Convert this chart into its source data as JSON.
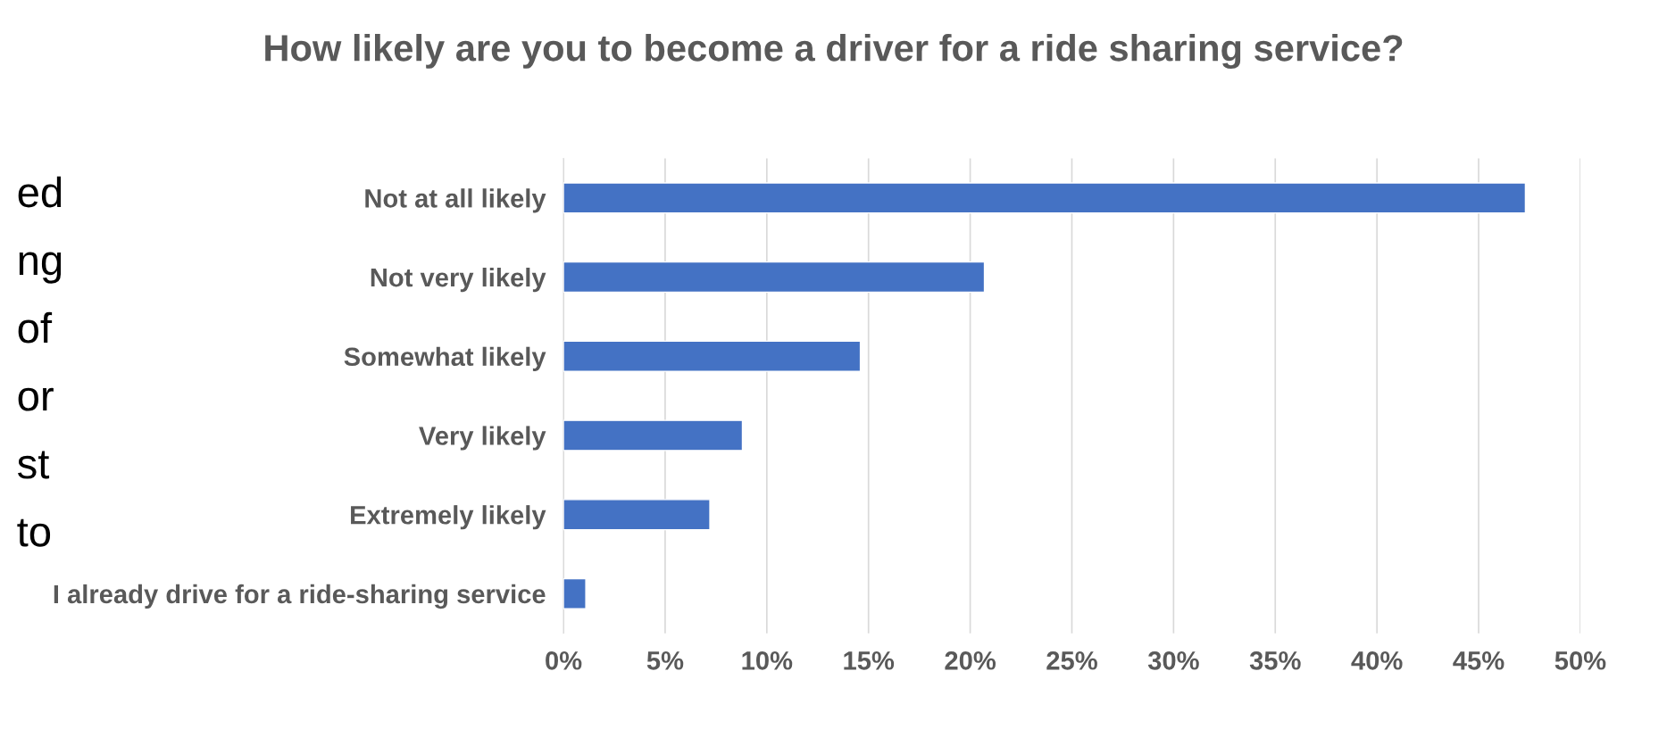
{
  "chart_data": {
    "type": "bar",
    "orientation": "horizontal",
    "title": "How likely are you to become a driver for a ride sharing service?",
    "categories": [
      "Not at all likely",
      "Not very likely",
      "Somewhat likely",
      "Very likely",
      "Extremely likely",
      "I already drive for a ride-sharing service"
    ],
    "values": [
      47.3,
      20.7,
      14.6,
      8.8,
      7.2,
      1.1
    ],
    "color": "#4472c4",
    "xlim": [
      0,
      50
    ],
    "xticks": [
      {
        "value": 0,
        "label": "0%"
      },
      {
        "value": 5,
        "label": "5%"
      },
      {
        "value": 10,
        "label": "10%"
      },
      {
        "value": 15,
        "label": "15%"
      },
      {
        "value": 20,
        "label": "20%"
      },
      {
        "value": 25,
        "label": "25%"
      },
      {
        "value": 30,
        "label": "30%"
      },
      {
        "value": 35,
        "label": "35%"
      },
      {
        "value": 40,
        "label": "40%"
      },
      {
        "value": 45,
        "label": "45%"
      },
      {
        "value": 50,
        "label": "50%"
      }
    ],
    "grid": "x",
    "annotations": [
      "ed",
      "ng",
      "of",
      "or",
      "st",
      "to"
    ]
  }
}
